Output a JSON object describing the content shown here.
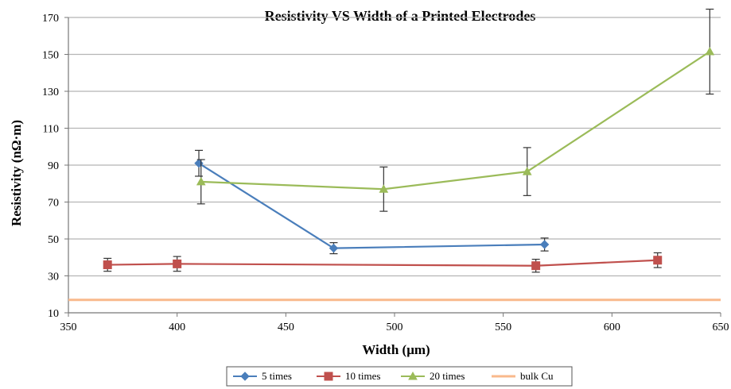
{
  "chart_data": {
    "type": "line",
    "title": "Resistivity VS Width of a Printed Electrodes",
    "xlabel": "Width (μm)",
    "ylabel": "Resistivity (nΩ·m)",
    "xlim": [
      350,
      650
    ],
    "ylim": [
      10,
      170
    ],
    "xticks": [
      350,
      400,
      450,
      500,
      550,
      600,
      650
    ],
    "yticks": [
      10,
      30,
      50,
      70,
      90,
      110,
      130,
      150,
      170
    ],
    "grid": "horizontal",
    "legend_position": "bottom",
    "series": [
      {
        "name": "5 times",
        "color": "#4A7EBB",
        "marker": "diamond",
        "points": [
          {
            "x": 410,
            "y": 91,
            "err": 7
          },
          {
            "x": 472,
            "y": 45,
            "err": 3
          },
          {
            "x": 569,
            "y": 47,
            "err": 3.5
          }
        ]
      },
      {
        "name": "10 times",
        "color": "#C0504D",
        "marker": "square",
        "points": [
          {
            "x": 368,
            "y": 36,
            "err": 3.5
          },
          {
            "x": 400,
            "y": 36.5,
            "err": 4
          },
          {
            "x": 565,
            "y": 35.5,
            "err": 3.5
          },
          {
            "x": 621,
            "y": 38.5,
            "err": 4
          }
        ]
      },
      {
        "name": "20 times",
        "color": "#9BBB59",
        "marker": "triangle",
        "points": [
          {
            "x": 411,
            "y": 81,
            "err": 12
          },
          {
            "x": 495,
            "y": 77,
            "err": 12
          },
          {
            "x": 561,
            "y": 86.5,
            "err": 13
          },
          {
            "x": 645,
            "y": 151.5,
            "err": 23
          }
        ]
      },
      {
        "name": "bulk Cu",
        "color": "#F9B98C",
        "marker": "none",
        "points": [
          {
            "x": 350,
            "y": 17
          },
          {
            "x": 650,
            "y": 17
          }
        ]
      }
    ]
  }
}
